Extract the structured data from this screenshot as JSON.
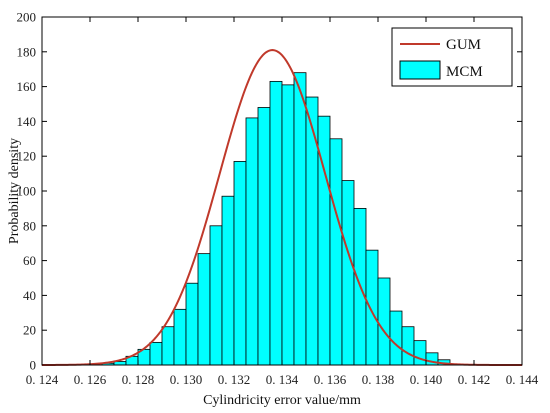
{
  "chart_data": {
    "type": "bar",
    "title": "",
    "xlabel": "Cylindricity error value/mm",
    "ylabel": "Probability density",
    "xlim": [
      0.124,
      0.144
    ],
    "ylim": [
      0,
      200
    ],
    "xticks": [
      0.124,
      0.126,
      0.128,
      0.13,
      0.132,
      0.134,
      0.136,
      0.138,
      0.14,
      0.142,
      0.144
    ],
    "xtick_labels": [
      "0. 124",
      "0. 126",
      "0. 128",
      "0. 130",
      "0. 132",
      "0. 134",
      "0. 136",
      "0. 138",
      "0. 140",
      "0. 142",
      "0. 144"
    ],
    "yticks": [
      0,
      20,
      40,
      60,
      80,
      100,
      120,
      140,
      160,
      180,
      200
    ],
    "ytick_labels": [
      "0",
      "20",
      "40",
      "60",
      "80",
      "100",
      "120",
      "140",
      "160",
      "180",
      "200"
    ],
    "legend_position": "top-right",
    "grid": false,
    "bin_width": 0.0005,
    "histogram": {
      "name": "MCM",
      "color": "#00ffff",
      "edge_color": "#000000",
      "bins_left": [
        0.1265,
        0.127,
        0.1275,
        0.128,
        0.1285,
        0.129,
        0.1295,
        0.13,
        0.1305,
        0.131,
        0.1315,
        0.132,
        0.1325,
        0.133,
        0.1335,
        0.134,
        0.1345,
        0.135,
        0.1355,
        0.136,
        0.1365,
        0.137,
        0.1375,
        0.138,
        0.1385,
        0.139,
        0.1395,
        0.14,
        0.1405
      ],
      "values": [
        1,
        2,
        5,
        9,
        13,
        22,
        32,
        47,
        64,
        80,
        97,
        117,
        142,
        148,
        163,
        161,
        168,
        154,
        143,
        130,
        106,
        90,
        66,
        50,
        31,
        22,
        14,
        7,
        3
      ]
    },
    "curve": {
      "name": "GUM",
      "color": "#c0392b",
      "type": "normal",
      "mean": 0.1336,
      "std": 0.0022,
      "peak": 181
    }
  }
}
